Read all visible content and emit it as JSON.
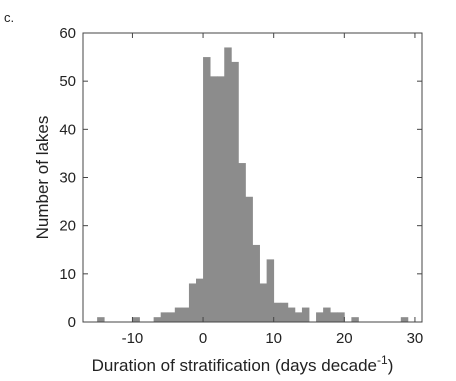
{
  "panel_label": "c.",
  "chart_data": {
    "type": "bar",
    "subtype": "histogram",
    "title": "",
    "xlabel": "Duration of stratification (days decade",
    "xlabel_superscript": "-1",
    "xlabel_suffix": ")",
    "ylabel": "Number of lakes",
    "xlim": [
      -17,
      31
    ],
    "ylim": [
      0,
      60
    ],
    "xticks": [
      "-10",
      "0",
      "10",
      "20",
      "30"
    ],
    "xtick_values": [
      -10,
      0,
      10,
      20,
      30
    ],
    "yticks": [
      "0",
      "10",
      "20",
      "30",
      "40",
      "50",
      "60"
    ],
    "ytick_values": [
      0,
      10,
      20,
      30,
      40,
      50,
      60
    ],
    "bin_width": 1,
    "bin_starts": [
      -15,
      -14,
      -13,
      -12,
      -11,
      -10,
      -9,
      -8,
      -7,
      -6,
      -5,
      -4,
      -3,
      -2,
      -1,
      0,
      1,
      2,
      3,
      4,
      5,
      6,
      7,
      8,
      9,
      10,
      11,
      12,
      13,
      14,
      15,
      16,
      17,
      18,
      19,
      20,
      21,
      22,
      23,
      24,
      25,
      26,
      27,
      28
    ],
    "values": [
      1,
      0,
      0,
      0,
      0,
      1,
      0,
      0,
      1,
      2,
      2,
      3,
      3,
      8,
      9,
      55,
      51,
      51,
      57,
      54,
      33,
      26,
      16,
      8,
      13,
      4,
      4,
      3,
      2,
      3,
      0,
      2,
      3,
      2,
      2,
      0,
      1,
      0,
      0,
      0,
      0,
      0,
      0,
      1
    ],
    "bar_color": "#8c8c8c",
    "grid": false,
    "legend": "none"
  }
}
